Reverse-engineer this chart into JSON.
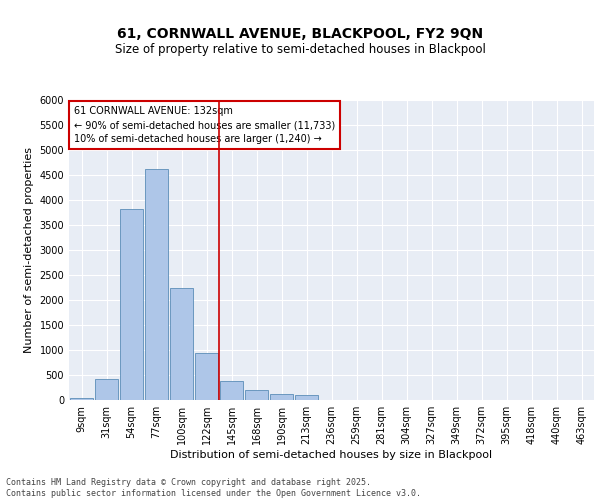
{
  "title1": "61, CORNWALL AVENUE, BLACKPOOL, FY2 9QN",
  "title2": "Size of property relative to semi-detached houses in Blackpool",
  "xlabel": "Distribution of semi-detached houses by size in Blackpool",
  "ylabel": "Number of semi-detached properties",
  "categories": [
    "9sqm",
    "31sqm",
    "54sqm",
    "77sqm",
    "100sqm",
    "122sqm",
    "145sqm",
    "168sqm",
    "190sqm",
    "213sqm",
    "236sqm",
    "259sqm",
    "281sqm",
    "304sqm",
    "327sqm",
    "349sqm",
    "372sqm",
    "395sqm",
    "418sqm",
    "440sqm",
    "463sqm"
  ],
  "values": [
    50,
    430,
    3820,
    4620,
    2250,
    950,
    380,
    200,
    120,
    110,
    0,
    0,
    0,
    0,
    0,
    0,
    0,
    0,
    0,
    0,
    0
  ],
  "bar_color": "#aec6e8",
  "bar_edge_color": "#5b8db8",
  "vline_x_index": 5.5,
  "vline_color": "#cc0000",
  "annotation_text": "61 CORNWALL AVENUE: 132sqm\n← 90% of semi-detached houses are smaller (11,733)\n10% of semi-detached houses are larger (1,240) →",
  "annotation_box_color": "#cc0000",
  "ylim": [
    0,
    6000
  ],
  "yticks": [
    0,
    500,
    1000,
    1500,
    2000,
    2500,
    3000,
    3500,
    4000,
    4500,
    5000,
    5500,
    6000
  ],
  "background_color": "#e8edf5",
  "fig_background": "#ffffff",
  "footer": "Contains HM Land Registry data © Crown copyright and database right 2025.\nContains public sector information licensed under the Open Government Licence v3.0.",
  "title1_fontsize": 10,
  "title2_fontsize": 8.5,
  "xlabel_fontsize": 8,
  "ylabel_fontsize": 8,
  "tick_fontsize": 7,
  "footer_fontsize": 6
}
